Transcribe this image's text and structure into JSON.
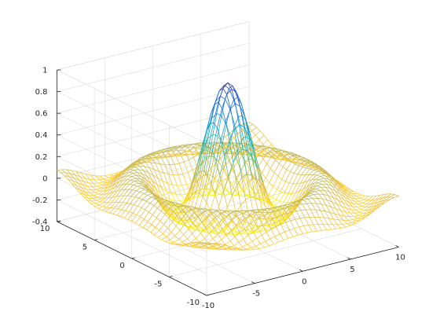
{
  "chart_data": {
    "type": "surface-mesh",
    "function": "sinc: z = sin(r)/r, r = sqrt(x^2 + y^2)",
    "x": {
      "range": [
        -10,
        10
      ],
      "ticks": [
        -10,
        -5,
        0,
        5,
        10
      ],
      "tick_labels": [
        "-10",
        "-5",
        "0",
        "5",
        "10"
      ]
    },
    "y": {
      "range": [
        -10,
        10
      ],
      "ticks": [
        -10,
        -5,
        0,
        5,
        10
      ],
      "tick_labels": [
        "-10",
        "-5",
        "0",
        "5",
        "10"
      ]
    },
    "z": {
      "range": [
        -0.4,
        1
      ],
      "ticks": [
        -0.4,
        -0.2,
        0,
        0.2,
        0.4,
        0.6,
        0.8,
        1
      ],
      "tick_labels": [
        "-0.4",
        "-0.2",
        "0",
        "0.2",
        "0.4",
        "0.6",
        "0.8",
        "1"
      ]
    },
    "mesh_samples": 41,
    "grid": true,
    "colormap": "parula",
    "colormap_stops": [
      "#352a87",
      "#0f5cdd",
      "#1481d6",
      "#06a4ca",
      "#2eb7a4",
      "#87bf77",
      "#d1bb59",
      "#fec832",
      "#f9fb0e"
    ],
    "title": "",
    "xlabel": "",
    "ylabel": "",
    "zlabel": ""
  }
}
